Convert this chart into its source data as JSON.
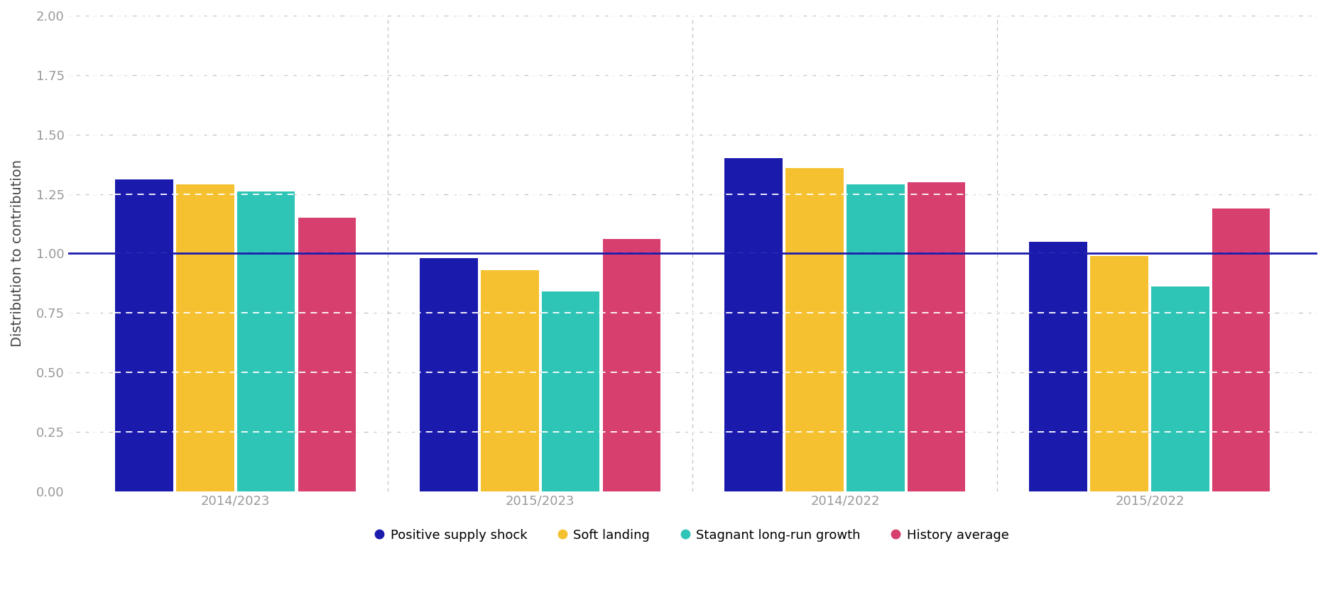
{
  "categories": [
    "2014/2023",
    "2015/2023",
    "2014/2022",
    "2015/2022"
  ],
  "series": {
    "Positive supply shock": [
      1.31,
      0.98,
      1.4,
      1.05
    ],
    "Soft landing": [
      1.29,
      0.93,
      1.36,
      0.99
    ],
    "Stagnant long-run growth": [
      1.26,
      0.84,
      1.29,
      0.86
    ],
    "History average": [
      1.15,
      1.06,
      1.3,
      1.19
    ]
  },
  "colors": {
    "Positive supply shock": "#1a1aad",
    "Soft landing": "#f5c130",
    "Stagnant long-run growth": "#2ec4b6",
    "History average": "#d63f6e"
  },
  "ylabel": "Distribution to contribution",
  "ylim": [
    0.0,
    2.0
  ],
  "yticks": [
    0.0,
    0.25,
    0.5,
    0.75,
    1.0,
    1.25,
    1.5,
    1.75,
    2.0
  ],
  "hline_y": 1.0,
  "hline_color": "#1a1aad",
  "background_color": "#ffffff",
  "white_grid_color": "#ffffff",
  "gray_grid_color": "#c0c0c0",
  "bar_width": 0.19,
  "bar_gap": 0.01,
  "legend_fontsize": 13,
  "ylabel_fontsize": 14,
  "tick_fontsize": 13,
  "tick_color": "#999999",
  "ylabel_color": "#444444"
}
